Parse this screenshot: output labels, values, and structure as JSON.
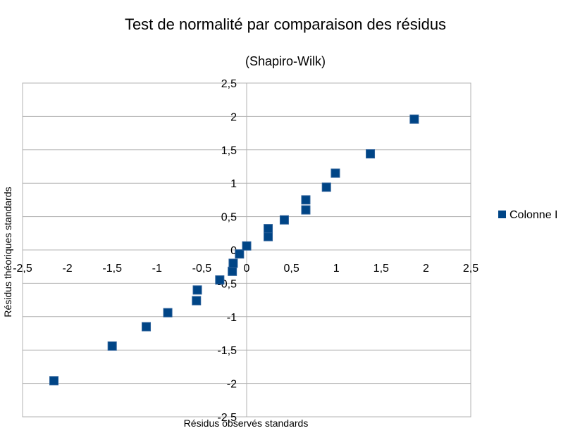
{
  "chart_data": {
    "type": "scatter",
    "title": "Test de normalité par comparaison des résidus",
    "subtitle": "(Shapiro-Wilk)",
    "xlabel": "Résidus observés standards",
    "ylabel": "Résidus théoriques standards",
    "xlim": [
      -2.5,
      2.5
    ],
    "ylim": [
      -2.5,
      2.5
    ],
    "x_ticks": [
      "-2,5",
      "-2",
      "-1,5",
      "-1",
      "-0,5",
      "0",
      "0,5",
      "1",
      "1,5",
      "2",
      "2,5"
    ],
    "y_ticks": [
      "2,5",
      "2",
      "1,5",
      "1",
      "0,5",
      "0",
      "-0,5",
      "-1",
      "-1,5",
      "-2",
      "-2,5"
    ],
    "grid": "horizontal",
    "legend_position": "right",
    "series": [
      {
        "name": "Colonne I",
        "color": "#004586",
        "marker": "square",
        "points": [
          {
            "x": -2.15,
            "y": -1.96
          },
          {
            "x": -1.5,
            "y": -1.44
          },
          {
            "x": -1.12,
            "y": -1.15
          },
          {
            "x": -0.88,
            "y": -0.94
          },
          {
            "x": -0.56,
            "y": -0.76
          },
          {
            "x": -0.55,
            "y": -0.6
          },
          {
            "x": -0.3,
            "y": -0.45
          },
          {
            "x": -0.16,
            "y": -0.32
          },
          {
            "x": -0.15,
            "y": -0.2
          },
          {
            "x": -0.08,
            "y": -0.06
          },
          {
            "x": 0.0,
            "y": 0.06
          },
          {
            "x": 0.24,
            "y": 0.2
          },
          {
            "x": 0.24,
            "y": 0.32
          },
          {
            "x": 0.42,
            "y": 0.45
          },
          {
            "x": 0.66,
            "y": 0.6
          },
          {
            "x": 0.66,
            "y": 0.75
          },
          {
            "x": 0.89,
            "y": 0.94
          },
          {
            "x": 0.99,
            "y": 1.15
          },
          {
            "x": 1.38,
            "y": 1.44
          },
          {
            "x": 1.87,
            "y": 1.96
          }
        ]
      }
    ]
  }
}
